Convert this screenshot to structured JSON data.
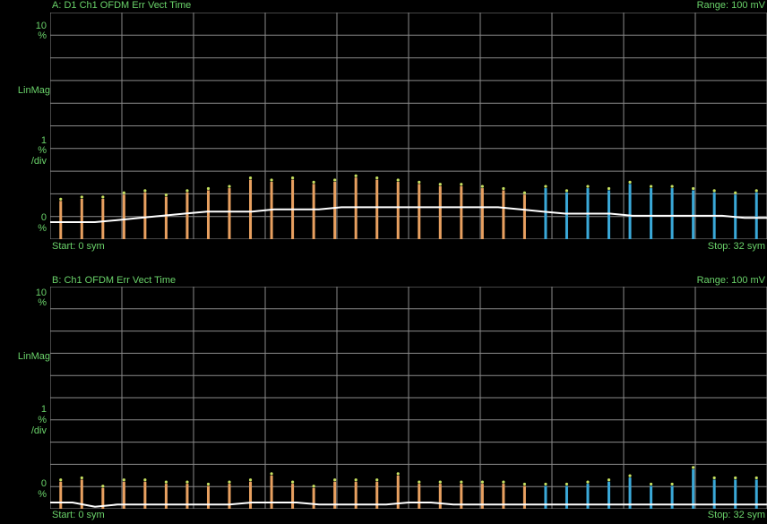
{
  "chart_data": [
    {
      "type": "bar",
      "title": "A: D1 Ch1 OFDM Err Vect Time",
      "range_label": "Range: 100 mV",
      "start_label": "Start: 0  sym",
      "stop_label": "Stop: 32  sym",
      "y_top": [
        "10",
        "%"
      ],
      "y_mid": "LinMag",
      "y_div": [
        "1",
        "%",
        "/div"
      ],
      "y_bottom": [
        "0",
        "%"
      ],
      "ylim": [
        0,
        10
      ],
      "xlim": [
        0,
        32
      ],
      "grid": true,
      "colors": {
        "pilot": "#e8a060",
        "data": "#3aa8d8",
        "mean": "#ffffff",
        "marker": "#c6e060"
      },
      "bars_orange": [
        1.8,
        1.9,
        1.9,
        2.1,
        2.2,
        2.0,
        2.2,
        2.3,
        2.4,
        2.8,
        2.7,
        2.8,
        2.6,
        2.7,
        2.9,
        2.8,
        2.7,
        2.6,
        2.5,
        2.5,
        2.4,
        2.3,
        2.1
      ],
      "bars_blue": [
        2.4,
        2.2,
        2.4,
        2.3,
        2.6,
        2.4,
        2.4,
        2.3,
        2.2,
        2.1,
        2.2
      ],
      "mean_line": [
        0.8,
        0.8,
        0.8,
        0.9,
        1.0,
        1.1,
        1.2,
        1.3,
        1.3,
        1.3,
        1.4,
        1.4,
        1.4,
        1.5,
        1.5,
        1.5,
        1.5,
        1.5,
        1.5,
        1.5,
        1.5,
        1.4,
        1.3,
        1.2,
        1.2,
        1.2,
        1.1,
        1.1,
        1.1,
        1.1,
        1.1,
        1.0,
        1.0
      ]
    },
    {
      "type": "bar",
      "title": "B: Ch1 OFDM Err Vect Time",
      "range_label": "Range: 100 mV",
      "start_label": "Start: 0  sym",
      "stop_label": "Stop: 32  sym",
      "y_top": [
        "10",
        "%"
      ],
      "y_mid": "LinMag",
      "y_div": [
        "1",
        "%",
        "/div"
      ],
      "y_bottom": [
        "0",
        "%"
      ],
      "ylim": [
        0,
        10
      ],
      "xlim": [
        0,
        32
      ],
      "grid": true,
      "colors": {
        "pilot": "#e8a060",
        "data": "#3aa8d8",
        "mean": "#ffffff",
        "marker": "#c6e060"
      },
      "bars_orange": [
        1.3,
        1.4,
        1.0,
        1.3,
        1.3,
        1.2,
        1.2,
        1.1,
        1.2,
        1.3,
        1.6,
        1.2,
        1.0,
        1.3,
        1.3,
        1.3,
        1.6,
        1.2,
        1.2,
        1.2,
        1.2,
        1.2,
        1.1
      ],
      "bars_blue": [
        1.1,
        1.1,
        1.2,
        1.3,
        1.5,
        1.1,
        1.1,
        1.9,
        1.4,
        1.4,
        1.4
      ],
      "mean_line": [
        0.3,
        0.3,
        0.1,
        0.2,
        0.2,
        0.2,
        0.2,
        0.2,
        0.2,
        0.3,
        0.3,
        0.3,
        0.2,
        0.2,
        0.2,
        0.2,
        0.3,
        0.3,
        0.2,
        0.2,
        0.2,
        0.2,
        0.2,
        0.2,
        0.2,
        0.2,
        0.2,
        0.2,
        0.2,
        0.2,
        0.2,
        0.2,
        0.2
      ]
    }
  ]
}
